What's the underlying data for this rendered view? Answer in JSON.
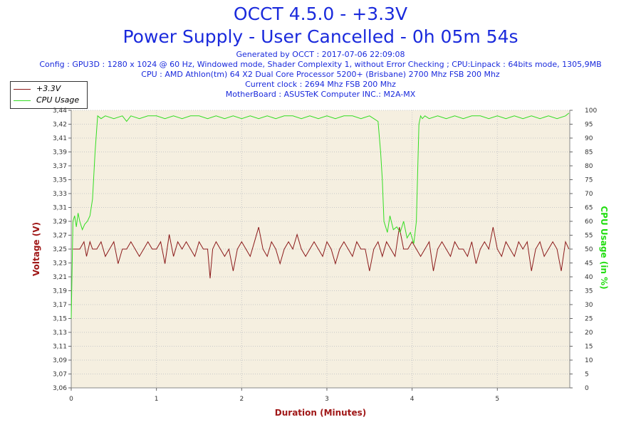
{
  "header": {
    "title": "OCCT 4.5.0 - +3.3V",
    "subtitle": "Power Supply - User Cancelled - 0h 05m 54s",
    "info_lines": [
      "Generated by OCCT : 2017-07-06 22:09:08",
      "Config : GPU3D : 1280 x 1024 @ 60 Hz, Windowed mode, Shader Complexity 1, without Error Checking ; CPU:Linpack : 64bits mode, 1305,9MB",
      "CPU : AMD Athlon(tm) 64 X2 Dual Core Processor 5200+ (Brisbane) 2700 Mhz FSB 200 Mhz",
      "Current clock : 2694 Mhz FSB 200 Mhz",
      "MotherBoard : ASUSTeK Computer INC.: M2A-MX"
    ]
  },
  "legend": {
    "items": [
      {
        "label": "+3.3V",
        "color": "#8b1a1a"
      },
      {
        "label": "CPU Usage",
        "color": "#33dd22"
      }
    ]
  },
  "chart_data": {
    "type": "line",
    "xlabel": "Duration (Minutes)",
    "ylabel": "Voltage (V)",
    "y2label": "CPU Usage (in %)",
    "xlim": [
      0,
      5.85
    ],
    "ylim": [
      3.06,
      3.44
    ],
    "y2lim": [
      0,
      100
    ],
    "x_ticks": [
      "0",
      "1",
      "2",
      "3",
      "4",
      "5"
    ],
    "y_ticks": [
      "3,06",
      "3,07",
      "3,09",
      "3,11",
      "3,13",
      "3,15",
      "3,17",
      "3,19",
      "3,21",
      "3,23",
      "3,25",
      "3,27",
      "3,29",
      "3,31",
      "3,33",
      "3,35",
      "3,37",
      "3,39",
      "3,41",
      "3,42",
      "3,44"
    ],
    "y2_ticks": [
      "0",
      "5",
      "10",
      "15",
      "20",
      "25",
      "30",
      "35",
      "40",
      "45",
      "50",
      "55",
      "60",
      "65",
      "70",
      "75",
      "80",
      "85",
      "90",
      "95",
      "100"
    ],
    "grid": true,
    "legend_position": "top-left",
    "colors": {
      "plot_bg": "#f5efe0",
      "grid": "#c8c8c8",
      "voltage_label": "#a01818",
      "cpu_label": "#22dd11",
      "axis_text": "#333333"
    },
    "series": [
      {
        "name": "+3.3V",
        "axis": "left",
        "color": "#8b1a1a",
        "x": [
          0.02,
          0.1,
          0.15,
          0.18,
          0.22,
          0.25,
          0.3,
          0.35,
          0.4,
          0.45,
          0.5,
          0.55,
          0.6,
          0.65,
          0.7,
          0.75,
          0.8,
          0.85,
          0.9,
          0.95,
          1.0,
          1.05,
          1.1,
          1.15,
          1.2,
          1.25,
          1.3,
          1.35,
          1.4,
          1.45,
          1.5,
          1.55,
          1.6,
          1.63,
          1.66,
          1.7,
          1.75,
          1.8,
          1.85,
          1.9,
          1.95,
          2.0,
          2.05,
          2.1,
          2.15,
          2.2,
          2.25,
          2.3,
          2.35,
          2.4,
          2.45,
          2.5,
          2.55,
          2.6,
          2.65,
          2.7,
          2.75,
          2.8,
          2.85,
          2.9,
          2.95,
          3.0,
          3.05,
          3.1,
          3.15,
          3.2,
          3.25,
          3.3,
          3.35,
          3.4,
          3.45,
          3.5,
          3.55,
          3.6,
          3.65,
          3.7,
          3.75,
          3.8,
          3.85,
          3.9,
          3.95,
          4.0,
          4.05,
          4.1,
          4.15,
          4.2,
          4.25,
          4.3,
          4.35,
          4.4,
          4.45,
          4.5,
          4.55,
          4.6,
          4.65,
          4.7,
          4.75,
          4.8,
          4.85,
          4.9,
          4.95,
          5.0,
          5.05,
          5.1,
          5.15,
          5.2,
          5.25,
          5.3,
          5.35,
          5.4,
          5.45,
          5.5,
          5.55,
          5.6,
          5.65,
          5.7,
          5.75,
          5.8,
          5.84
        ],
        "y": [
          3.25,
          3.25,
          3.26,
          3.24,
          3.26,
          3.25,
          3.25,
          3.26,
          3.24,
          3.25,
          3.26,
          3.23,
          3.25,
          3.25,
          3.26,
          3.25,
          3.24,
          3.25,
          3.26,
          3.25,
          3.25,
          3.26,
          3.23,
          3.27,
          3.24,
          3.26,
          3.25,
          3.26,
          3.25,
          3.24,
          3.26,
          3.25,
          3.25,
          3.21,
          3.25,
          3.26,
          3.25,
          3.24,
          3.25,
          3.22,
          3.25,
          3.26,
          3.25,
          3.24,
          3.26,
          3.28,
          3.25,
          3.24,
          3.26,
          3.25,
          3.23,
          3.25,
          3.26,
          3.25,
          3.27,
          3.25,
          3.24,
          3.25,
          3.26,
          3.25,
          3.24,
          3.26,
          3.25,
          3.23,
          3.25,
          3.26,
          3.25,
          3.24,
          3.26,
          3.25,
          3.25,
          3.22,
          3.25,
          3.26,
          3.24,
          3.26,
          3.25,
          3.24,
          3.28,
          3.25,
          3.25,
          3.26,
          3.25,
          3.24,
          3.25,
          3.26,
          3.22,
          3.25,
          3.26,
          3.25,
          3.24,
          3.26,
          3.25,
          3.25,
          3.24,
          3.26,
          3.23,
          3.25,
          3.26,
          3.25,
          3.28,
          3.25,
          3.24,
          3.26,
          3.25,
          3.24,
          3.26,
          3.25,
          3.26,
          3.22,
          3.25,
          3.26,
          3.24,
          3.25,
          3.26,
          3.25,
          3.22,
          3.26,
          3.25
        ]
      },
      {
        "name": "CPU Usage",
        "axis": "right",
        "color": "#33dd22",
        "x": [
          0.0,
          0.02,
          0.04,
          0.06,
          0.08,
          0.1,
          0.13,
          0.16,
          0.19,
          0.22,
          0.25,
          0.28,
          0.31,
          0.35,
          0.4,
          0.5,
          0.6,
          0.65,
          0.7,
          0.8,
          0.9,
          1.0,
          1.1,
          1.2,
          1.3,
          1.4,
          1.5,
          1.6,
          1.7,
          1.8,
          1.9,
          2.0,
          2.1,
          2.2,
          2.3,
          2.4,
          2.5,
          2.6,
          2.7,
          2.8,
          2.9,
          3.0,
          3.1,
          3.2,
          3.3,
          3.4,
          3.5,
          3.55,
          3.6,
          3.63,
          3.65,
          3.67,
          3.69,
          3.71,
          3.74,
          3.78,
          3.82,
          3.86,
          3.9,
          3.94,
          3.98,
          4.02,
          4.05,
          4.08,
          4.1,
          4.12,
          4.15,
          4.2,
          4.3,
          4.4,
          4.5,
          4.6,
          4.7,
          4.8,
          4.9,
          5.0,
          5.1,
          5.2,
          5.3,
          5.4,
          5.5,
          5.6,
          5.7,
          5.8,
          5.84
        ],
        "y": [
          25,
          60,
          62,
          58,
          63,
          60,
          57,
          59,
          60,
          62,
          68,
          85,
          98,
          97,
          98,
          97,
          98,
          96,
          98,
          97,
          98,
          98,
          97,
          98,
          97,
          98,
          98,
          97,
          98,
          97,
          98,
          97,
          98,
          97,
          98,
          97,
          98,
          98,
          97,
          98,
          97,
          98,
          97,
          98,
          98,
          97,
          98,
          97,
          96,
          85,
          75,
          60,
          58,
          56,
          62,
          57,
          58,
          56,
          60,
          54,
          56,
          52,
          60,
          95,
          98,
          97,
          98,
          97,
          98,
          97,
          98,
          97,
          98,
          98,
          97,
          98,
          97,
          98,
          97,
          98,
          97,
          98,
          97,
          98,
          99
        ]
      }
    ]
  }
}
